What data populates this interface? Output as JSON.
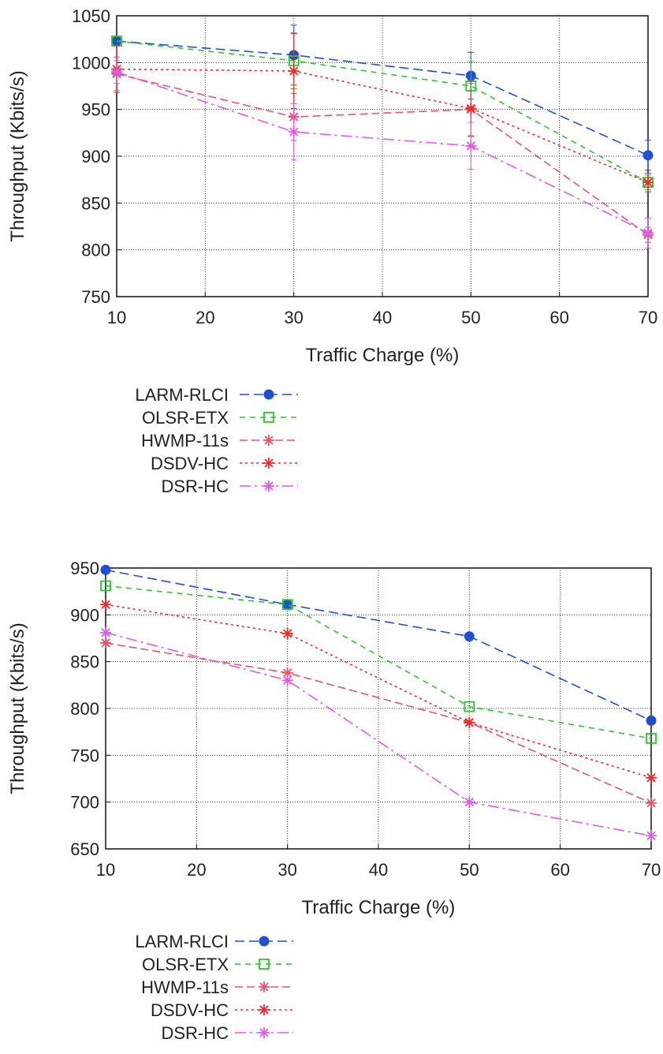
{
  "chart_data": [
    {
      "type": "line",
      "title": "",
      "xlabel": "Traffic Charge (%)",
      "ylabel": "Throughput (Kbits/s)",
      "xlim": [
        10,
        70
      ],
      "ylim": [
        750,
        1050
      ],
      "xticks": [
        10,
        20,
        30,
        40,
        50,
        60,
        70
      ],
      "yticks": [
        750,
        800,
        850,
        900,
        950,
        1000,
        1050
      ],
      "grid": true,
      "legend_position": "below",
      "x": [
        10,
        30,
        50,
        70
      ],
      "series": [
        {
          "name": "LARM-RLCI",
          "values": [
            1023,
            1008,
            986,
            901
          ],
          "color": "#1f4fd6",
          "marker": "filled-circle",
          "dash": "12,6",
          "err": [
            0,
            32,
            25,
            16
          ]
        },
        {
          "name": "OLSR-ETX",
          "values": [
            1023,
            1002,
            975,
            872
          ],
          "color": "#2fc42f",
          "marker": "open-square",
          "dash": "7,6",
          "err": [
            0,
            30,
            26,
            8
          ]
        },
        {
          "name": "HWMP-11s",
          "values": [
            988,
            942,
            950,
            816
          ],
          "color": "#e8556b",
          "marker": "star",
          "dash": "10,5",
          "err": [
            18,
            25,
            28,
            8
          ]
        },
        {
          "name": "DSDV-HC",
          "values": [
            993,
            991,
            951,
            872
          ],
          "color": "#ee2a2a",
          "marker": "star",
          "dash": "3,4",
          "err": [
            25,
            40,
            30,
            10
          ]
        },
        {
          "name": "DSR-HC",
          "values": [
            990,
            926,
            911,
            818
          ],
          "color": "#e05be6",
          "marker": "star",
          "dash": "14,5,3,5",
          "err": [
            12,
            30,
            25,
            16
          ]
        }
      ]
    },
    {
      "type": "line",
      "title": "",
      "xlabel": "Traffic Charge (%)",
      "ylabel": "Throughput (Kbits/s)",
      "xlim": [
        10,
        70
      ],
      "ylim": [
        650,
        950
      ],
      "xticks": [
        10,
        20,
        30,
        40,
        50,
        60,
        70
      ],
      "yticks": [
        650,
        700,
        750,
        800,
        850,
        900,
        950
      ],
      "grid": true,
      "legend_position": "below",
      "x": [
        10,
        30,
        50,
        70
      ],
      "series": [
        {
          "name": "LARM-RLCI",
          "values": [
            948,
            911,
            877,
            787
          ],
          "color": "#1f4fd6",
          "marker": "filled-circle",
          "dash": "12,6"
        },
        {
          "name": "OLSR-ETX",
          "values": [
            931,
            911,
            802,
            768
          ],
          "color": "#2fc42f",
          "marker": "open-square",
          "dash": "7,6"
        },
        {
          "name": "HWMP-11s",
          "values": [
            870,
            838,
            785,
            699
          ],
          "color": "#e8556b",
          "marker": "star",
          "dash": "10,5"
        },
        {
          "name": "DSDV-HC",
          "values": [
            911,
            880,
            785,
            726
          ],
          "color": "#ee2a2a",
          "marker": "star",
          "dash": "3,4"
        },
        {
          "name": "DSR-HC",
          "values": [
            881,
            830,
            700,
            664
          ],
          "color": "#e05be6",
          "marker": "star",
          "dash": "14,5,3,5"
        }
      ]
    }
  ]
}
